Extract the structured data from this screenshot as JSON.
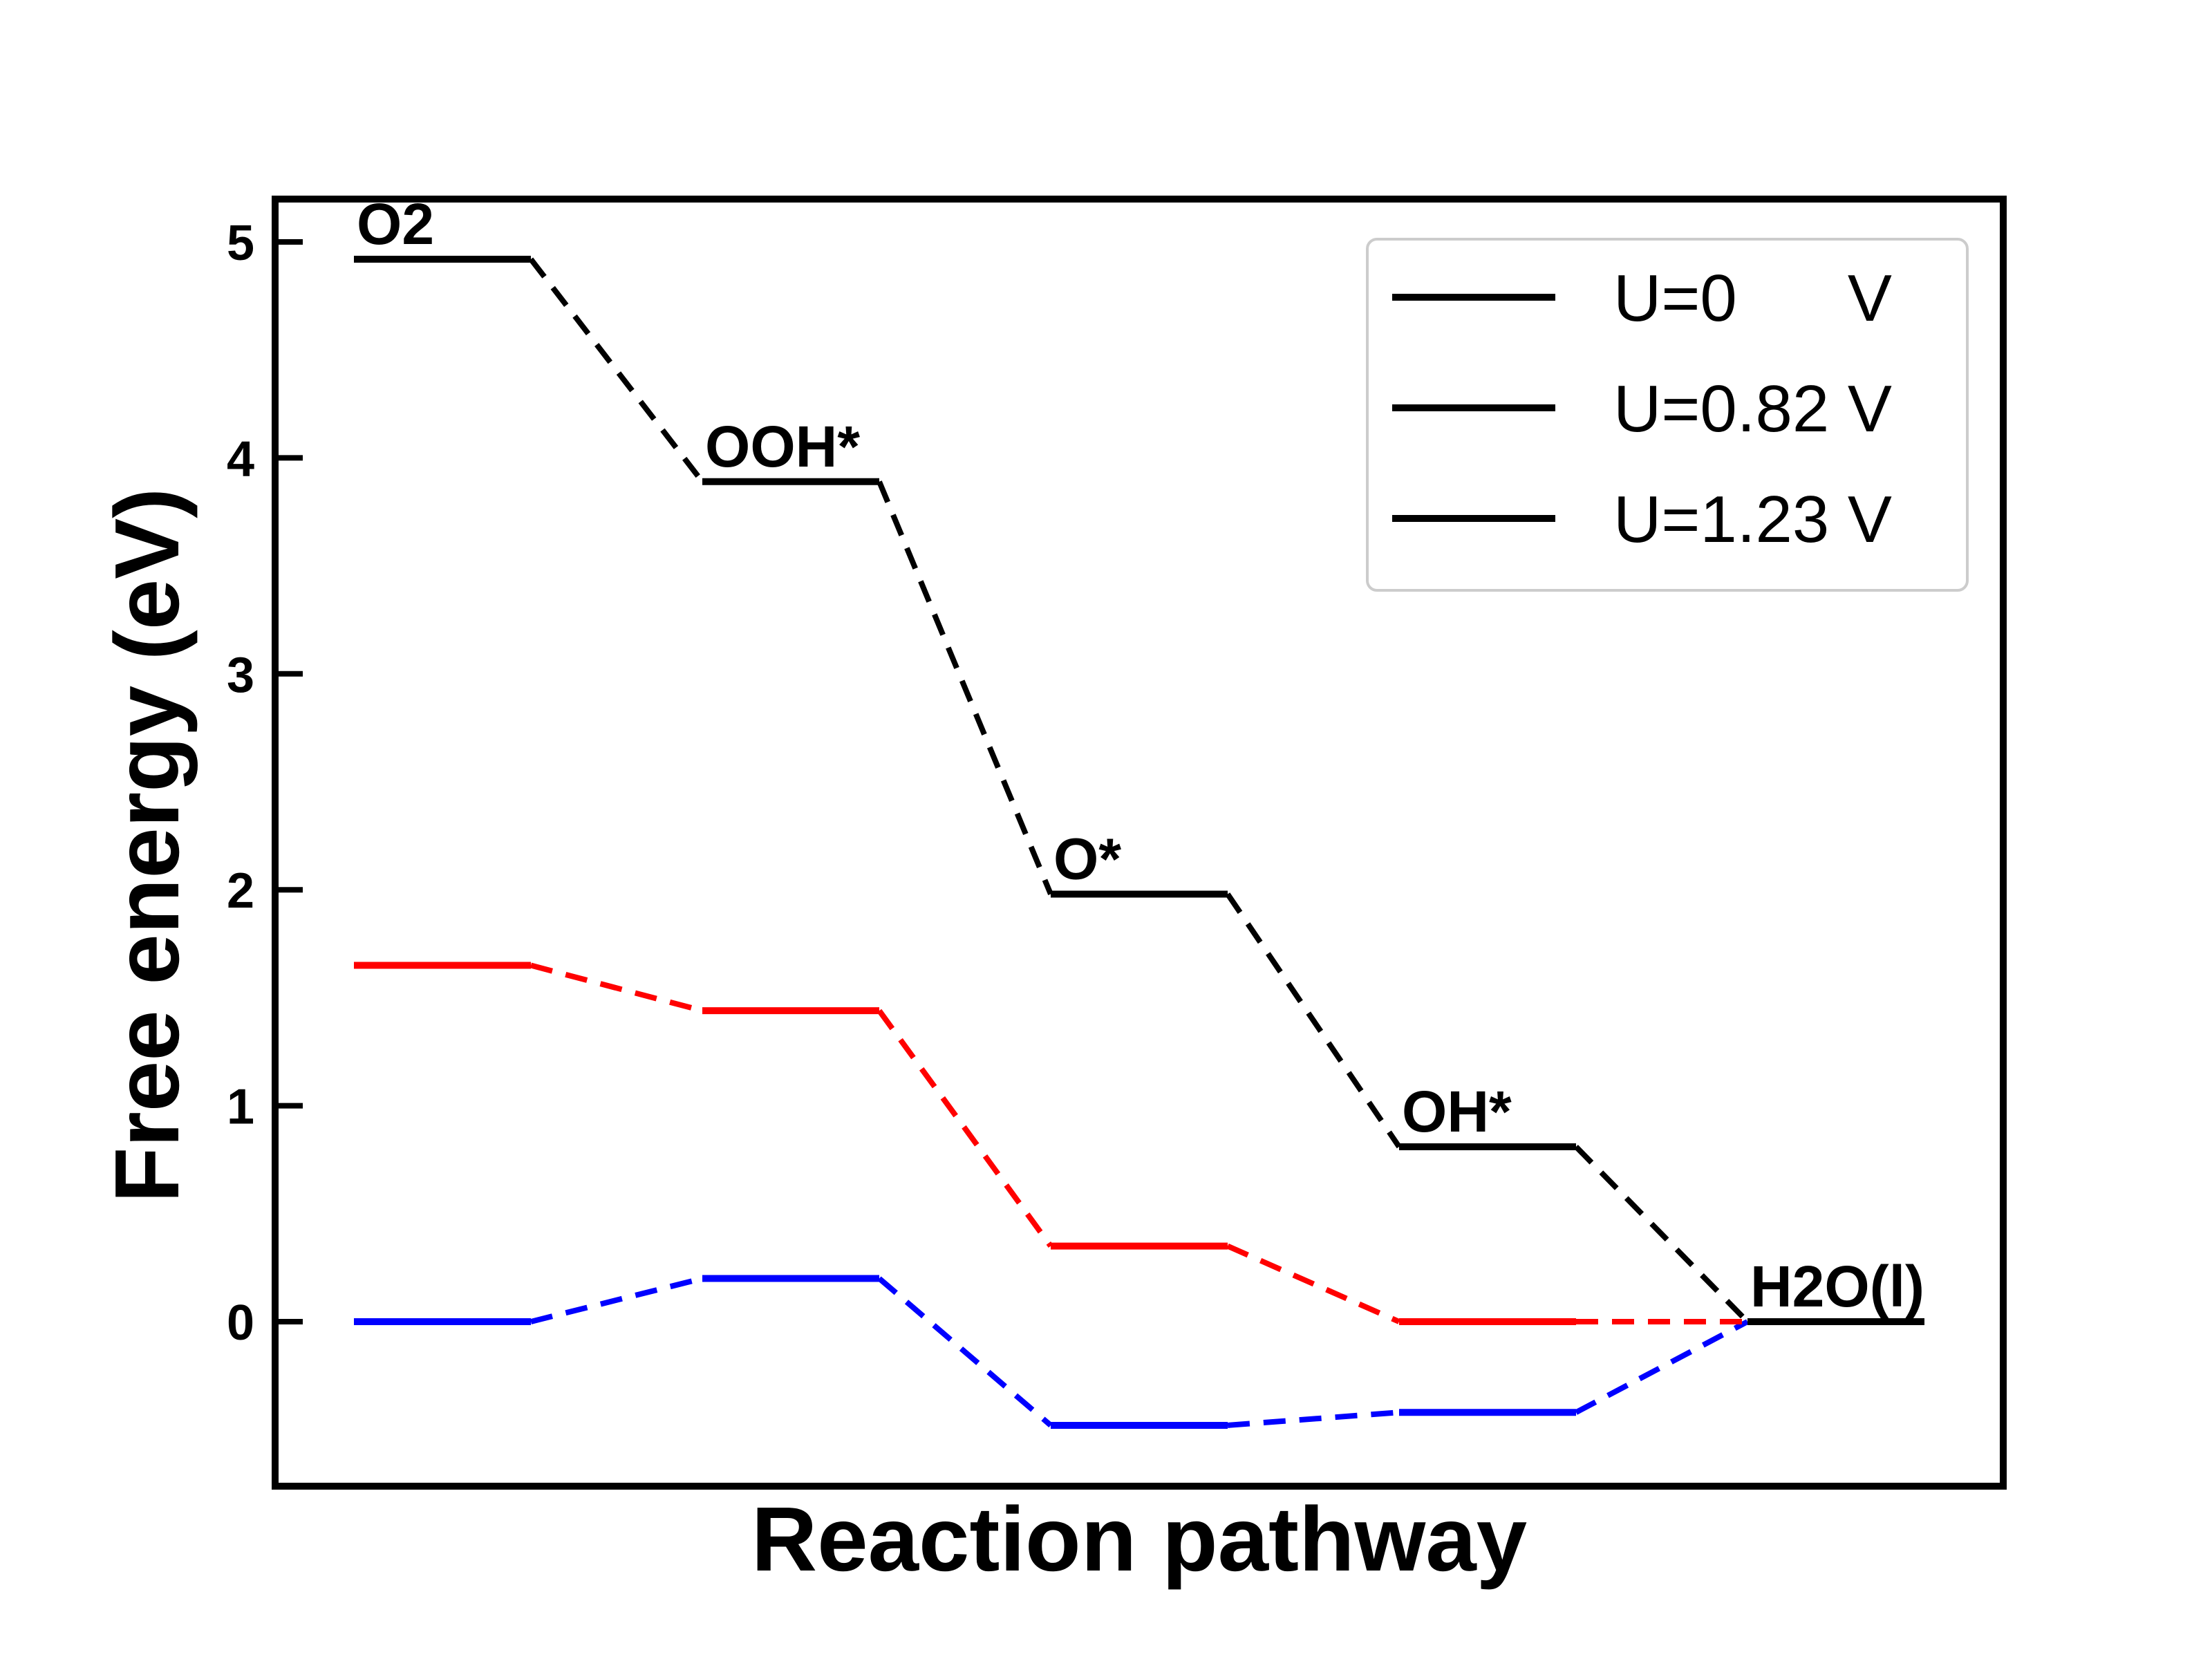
{
  "chart_data": {
    "type": "line",
    "title": "",
    "xlabel": "Reaction pathway",
    "ylabel": "Free energy (eV)",
    "ylim": [
      -0.75,
      5.2
    ],
    "yticks": [
      0,
      1,
      2,
      3,
      4,
      5
    ],
    "ytick_labels": [
      "0",
      "1",
      "2",
      "3",
      "4",
      "5"
    ],
    "grid": false,
    "legend_position": "top-right",
    "states": [
      "O2",
      "OOH*",
      "O*",
      "OH*",
      "H2O(l)"
    ],
    "series": [
      {
        "name": "U=0      V",
        "color": "#000000",
        "values": [
          4.92,
          3.89,
          1.98,
          0.81,
          0.0
        ]
      },
      {
        "name": "U=0.82 V",
        "color": "#ff0000",
        "values": [
          1.65,
          1.44,
          0.35,
          0.0,
          0.0
        ]
      },
      {
        "name": "U=1.23 V",
        "color": "#0000ff",
        "values": [
          0.0,
          0.2,
          -0.48,
          -0.42,
          0.0
        ]
      }
    ],
    "legend_line_color": "#000000"
  }
}
